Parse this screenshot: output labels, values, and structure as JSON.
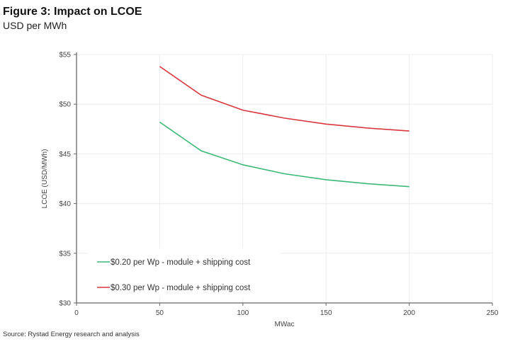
{
  "chart_data": {
    "type": "line",
    "title": "Figure 3: Impact on LCOE",
    "subtitle": "USD per MWh",
    "xlabel": "MWac",
    "ylabel": "LCOE (USD/MWh)",
    "xlim": [
      0,
      250
    ],
    "ylim": [
      30,
      55
    ],
    "xticks": [
      "0",
      "50",
      "100",
      "150",
      "200",
      "250"
    ],
    "yticks": [
      "$30",
      "$35",
      "$40",
      "$45",
      "$50",
      "$55"
    ],
    "grid": true,
    "legend_position": "bottom-left",
    "x": [
      50,
      75,
      100,
      125,
      150,
      175,
      200
    ],
    "series": [
      {
        "name": "$0.20 per Wp - module + shipping cost",
        "color": "#3cb878",
        "values": [
          48.2,
          45.3,
          43.9,
          43.0,
          42.4,
          42.0,
          41.7
        ]
      },
      {
        "name": "$0.30 per Wp - module + shipping cost",
        "color": "#d9363e",
        "values": [
          53.8,
          50.9,
          49.4,
          48.6,
          48.0,
          47.6,
          47.3
        ]
      }
    ],
    "source": "Source: Rystad Energy research and analysis"
  }
}
